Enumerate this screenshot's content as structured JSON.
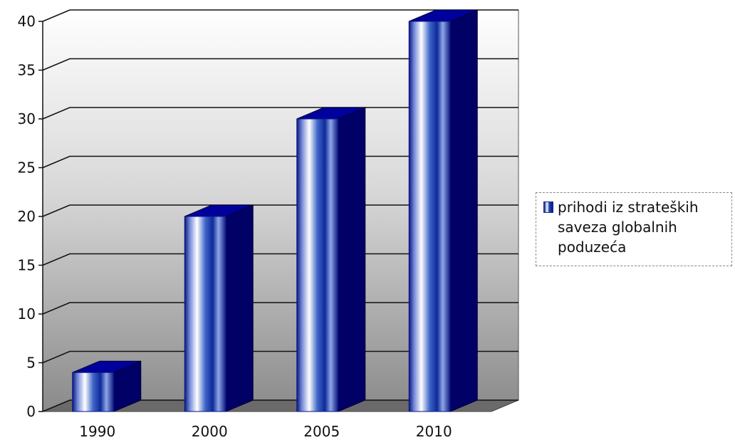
{
  "chart_data": {
    "type": "bar",
    "categories": [
      "1990",
      "2000",
      "2005",
      "2010"
    ],
    "series": [
      {
        "name": "prihodi iz strateških saveza globalnih poduzeća",
        "values": [
          4,
          20,
          30,
          40
        ]
      }
    ],
    "y_ticks": [
      "0",
      "5",
      "10",
      "15",
      "20",
      "25",
      "30",
      "35",
      "40"
    ],
    "ylim": [
      0,
      40
    ],
    "title": "",
    "xlabel": "",
    "ylabel": "",
    "grid": true,
    "legend_position": "right",
    "colors": {
      "bar_front_dark": "#0a1680",
      "bar_side": "#000066",
      "bar_top": "#00009c"
    }
  }
}
